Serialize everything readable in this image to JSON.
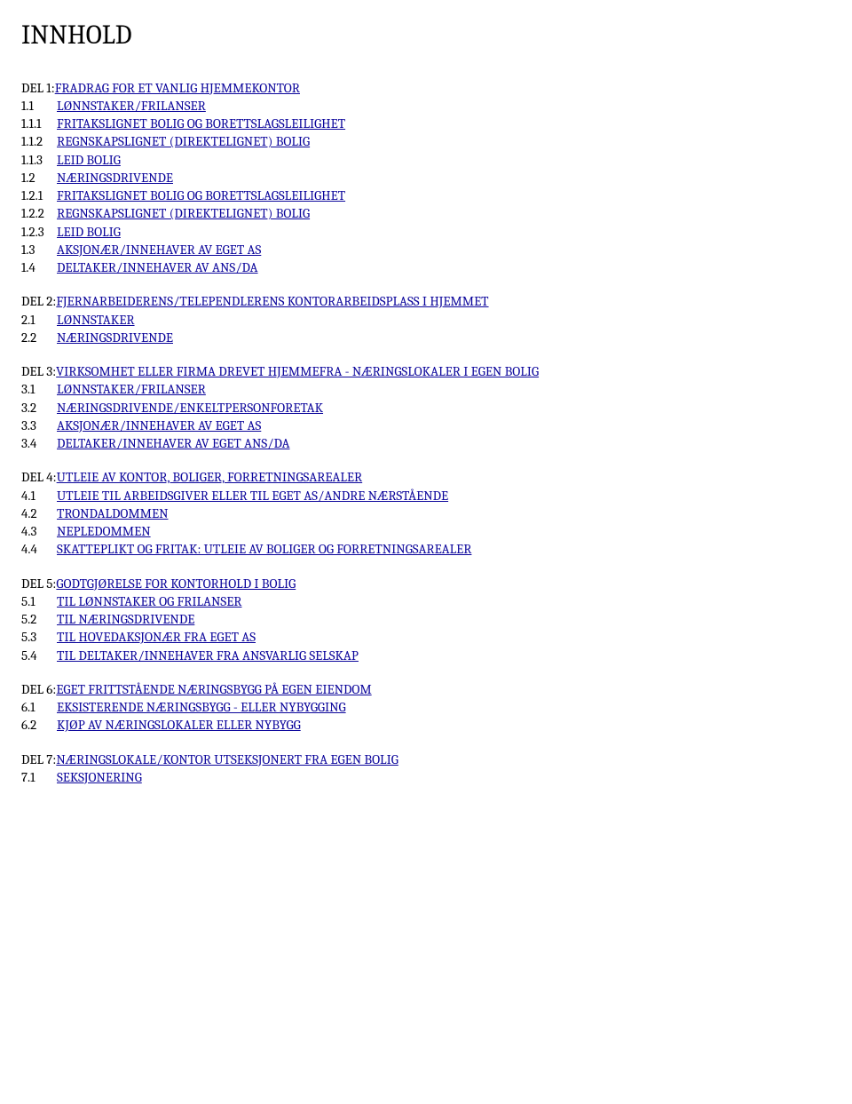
{
  "title": "INNHOLD",
  "link_color": "#0b059b",
  "text_color": "#000000",
  "background_color": "#ffffff",
  "font_family": "Cambria, Georgia, 'Times New Roman', serif",
  "title_fontsize": 30,
  "body_fontsize": 15,
  "sections": {
    "del1": {
      "label": "DEL 1:",
      "title": "FRADRAG FOR ET VANLIG HJEMMEKONTOR",
      "items": {
        "i1": {
          "num": "1.1",
          "text": "LØNNSTAKER/FRILANSER"
        },
        "i2": {
          "num": "1.1.1",
          "text": "FRITAKSLIGNET BOLIG OG BORETTSLAGSLEILIGHET"
        },
        "i3": {
          "num": "1.1.2",
          "text": "REGNSKAPSLIGNET (DIREKTELIGNET) BOLIG"
        },
        "i4": {
          "num": "1.1.3",
          "text": "LEID BOLIG"
        },
        "i5": {
          "num": "1.2",
          "text": "NÆRINGSDRIVENDE"
        },
        "i6": {
          "num": "1.2.1",
          "text": "FRITAKSLIGNET BOLIG OG BORETTSLAGSLEILIGHET"
        },
        "i7": {
          "num": "1.2.2",
          "text": "REGNSKAPSLIGNET (DIREKTELIGNET) BOLIG"
        },
        "i8": {
          "num": "1.2.3",
          "text": "LEID BOLIG"
        },
        "i9": {
          "num": "1.3",
          "text": "AKSJONÆR/INNEHAVER AV EGET AS"
        },
        "i10": {
          "num": "1.4",
          "text": "DELTAKER/INNEHAVER AV ANS/DA"
        }
      }
    },
    "del2": {
      "label": "DEL 2:",
      "title": "FJERNARBEIDERENS/TELEPENDLERENS KONTORARBEIDSPLASS I HJEMMET",
      "items": {
        "i1": {
          "num": "2.1",
          "text": "LØNNSTAKER"
        },
        "i2": {
          "num": "2.2",
          "text": "NÆRINGSDRIVENDE"
        }
      }
    },
    "del3": {
      "label": "DEL 3:",
      "title": "VIRKSOMHET ELLER FIRMA DREVET HJEMMEFRA - NÆRINGSLOKALER I EGEN BOLIG",
      "items": {
        "i1": {
          "num": "3.1",
          "text": "LØNNSTAKER/FRILANSER"
        },
        "i2": {
          "num": "3.2",
          "text": "NÆRINGSDRIVENDE/ENKELTPERSONFORETAK"
        },
        "i3": {
          "num": "3.3",
          "text": "AKSJONÆR/INNEHAVER AV EGET AS"
        },
        "i4": {
          "num": "3.4",
          "text": "DELTAKER/INNEHAVER AV EGET ANS/DA"
        }
      }
    },
    "del4": {
      "label": "DEL 4:",
      "title": "UTLEIE AV KONTOR, BOLIGER, FORRETNINGSAREALER",
      "items": {
        "i1": {
          "num": "4.1",
          "text": "UTLEIE TIL ARBEIDSGIVER ELLER TIL EGET AS/ANDRE NÆRSTÅENDE"
        },
        "i2": {
          "num": "4.2",
          "text": "TRONDALDOMMEN"
        },
        "i3": {
          "num": "4.3",
          "text": "NEPLEDOMMEN"
        },
        "i4": {
          "num": "4.4",
          "text": "SKATTEPLIKT OG FRITAK: UTLEIE AV BOLIGER OG FORRETNINGSAREALER"
        }
      }
    },
    "del5": {
      "label": "DEL 5:",
      "title": "GODTGJØRELSE FOR KONTORHOLD I BOLIG",
      "items": {
        "i1": {
          "num": "5.1",
          "text": "TIL LØNNSTAKER OG FRILANSER"
        },
        "i2": {
          "num": "5.2",
          "text": "TIL NÆRINGSDRIVENDE"
        },
        "i3": {
          "num": "5.3",
          "text": "TIL HOVEDAKSJONÆR FRA EGET AS"
        },
        "i4": {
          "num": "5.4",
          "text": "TIL DELTAKER/INNEHAVER FRA ANSVARLIG SELSKAP"
        }
      }
    },
    "del6": {
      "label": "DEL 6:",
      "title": "EGET FRITTSTÅENDE NÆRINGSBYGG PÅ EGEN EIENDOM",
      "items": {
        "i1": {
          "num": "6.1",
          "text": "EKSISTERENDE NÆRINGSBYGG - ELLER NYBYGGING"
        },
        "i2": {
          "num": "6.2",
          "text": "KJØP AV NÆRINGSLOKALER ELLER NYBYGG"
        }
      }
    },
    "del7": {
      "label": "DEL 7:",
      "title": "NÆRINGSLOKALE/KONTOR UTSEKSJONERT FRA EGEN BOLIG",
      "items": {
        "i1": {
          "num": "7.1",
          "text": "SEKSJONERING"
        }
      }
    }
  }
}
